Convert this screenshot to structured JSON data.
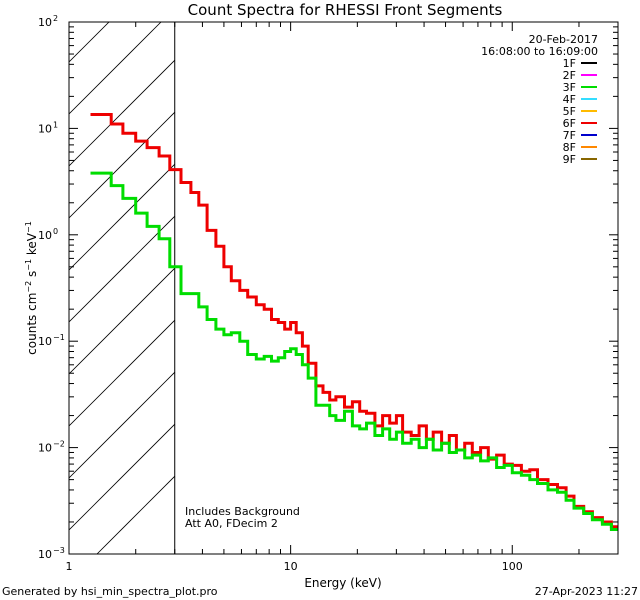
{
  "chart_data": {
    "type": "line",
    "title": "Count Spectra for RHESSI Front Segments",
    "xlabel": "Energy (keV)",
    "ylabel": {
      "base": "counts cm",
      "exp1": "−2",
      "mid1": " s",
      "exp2": "−1",
      "mid2": " keV",
      "exp3": "−1"
    },
    "xscale": "log",
    "yscale": "log",
    "xlim": [
      1,
      300
    ],
    "ylim": [
      0.001,
      100
    ],
    "x_ticks": [
      {
        "value": 1,
        "label": "1"
      },
      {
        "value": 10,
        "label": "10"
      },
      {
        "value": 100,
        "label": "100"
      }
    ],
    "y_ticks": [
      {
        "value": 0.001,
        "base": "10",
        "exp": "−3"
      },
      {
        "value": 0.01,
        "base": "10",
        "exp": "−2"
      },
      {
        "value": 0.1,
        "base": "10",
        "exp": "−1"
      },
      {
        "value": 1,
        "base": "10",
        "exp": "0"
      },
      {
        "value": 10,
        "base": "10",
        "exp": "1"
      },
      {
        "value": 100,
        "base": "10",
        "exp": "2"
      }
    ],
    "hatched_region_max_keV": 3,
    "legend": {
      "position": "top-right",
      "date": "20-Feb-2017",
      "time_range": "16:08:00 to 16:09:00",
      "entries": [
        {
          "label": "1F",
          "color": "#000000"
        },
        {
          "label": "2F",
          "color": "#ff00ff"
        },
        {
          "label": "3F",
          "color": "#00dd00"
        },
        {
          "label": "4F",
          "color": "#33ddff"
        },
        {
          "label": "5F",
          "color": "#ffbb00"
        },
        {
          "label": "6F",
          "color": "#ee0000"
        },
        {
          "label": "7F",
          "color": "#0000cc"
        },
        {
          "label": "8F",
          "color": "#ff8800"
        },
        {
          "label": "9F",
          "color": "#886600"
        }
      ]
    },
    "annotations": [
      "Includes Background",
      "Att A0, FDecim 2"
    ],
    "series": [
      {
        "name": "6F",
        "color": "#ee0000",
        "points": [
          [
            1.25,
            13.5
          ],
          [
            1.45,
            13.5
          ],
          [
            1.55,
            11.0
          ],
          [
            1.75,
            9.0
          ],
          [
            2.0,
            7.6
          ],
          [
            2.25,
            6.6
          ],
          [
            2.55,
            5.5
          ],
          [
            2.85,
            4.1
          ],
          [
            3.2,
            3.1
          ],
          [
            3.55,
            2.5
          ],
          [
            3.85,
            1.9
          ],
          [
            4.2,
            1.1
          ],
          [
            4.6,
            0.78
          ],
          [
            5.0,
            0.5
          ],
          [
            5.4,
            0.37
          ],
          [
            5.9,
            0.3
          ],
          [
            6.4,
            0.26
          ],
          [
            7.0,
            0.22
          ],
          [
            7.6,
            0.2
          ],
          [
            8.2,
            0.16
          ],
          [
            8.8,
            0.15
          ],
          [
            9.4,
            0.13
          ],
          [
            10.0,
            0.15
          ],
          [
            10.6,
            0.12
          ],
          [
            11.3,
            0.09
          ],
          [
            12.0,
            0.062
          ],
          [
            13.0,
            0.038
          ],
          [
            14.0,
            0.033
          ],
          [
            15.0,
            0.028
          ],
          [
            16.0,
            0.03
          ],
          [
            17.5,
            0.024
          ],
          [
            19.0,
            0.027
          ],
          [
            20.5,
            0.022
          ],
          [
            22.0,
            0.021
          ],
          [
            24.0,
            0.016
          ],
          [
            26.0,
            0.02
          ],
          [
            28.0,
            0.017
          ],
          [
            30.0,
            0.02
          ],
          [
            32.0,
            0.014
          ],
          [
            35.0,
            0.013
          ],
          [
            38.0,
            0.016
          ],
          [
            41.0,
            0.012
          ],
          [
            44.0,
            0.014
          ],
          [
            48.0,
            0.011
          ],
          [
            52.0,
            0.013
          ],
          [
            56.0,
            0.0095
          ],
          [
            61.0,
            0.011
          ],
          [
            66.0,
            0.009
          ],
          [
            72.0,
            0.01
          ],
          [
            78.0,
            0.0078
          ],
          [
            85.0,
            0.0085
          ],
          [
            92.0,
            0.007
          ],
          [
            100.0,
            0.0068
          ],
          [
            110.0,
            0.006
          ],
          [
            120.0,
            0.0062
          ],
          [
            130.0,
            0.005
          ],
          [
            145.0,
            0.0045
          ],
          [
            160.0,
            0.0042
          ],
          [
            175.0,
            0.0035
          ],
          [
            190.0,
            0.0028
          ],
          [
            210.0,
            0.0025
          ],
          [
            230.0,
            0.0022
          ],
          [
            255.0,
            0.002
          ],
          [
            280.0,
            0.0018
          ],
          [
            300.0,
            0.0018
          ]
        ]
      },
      {
        "name": "3F",
        "color": "#00dd00",
        "points": [
          [
            1.25,
            3.8
          ],
          [
            1.45,
            3.8
          ],
          [
            1.55,
            2.9
          ],
          [
            1.75,
            2.2
          ],
          [
            2.0,
            1.6
          ],
          [
            2.25,
            1.2
          ],
          [
            2.55,
            0.92
          ],
          [
            2.85,
            0.5
          ],
          [
            3.2,
            0.28
          ],
          [
            3.55,
            0.28
          ],
          [
            3.85,
            0.21
          ],
          [
            4.2,
            0.16
          ],
          [
            4.6,
            0.13
          ],
          [
            5.0,
            0.115
          ],
          [
            5.4,
            0.12
          ],
          [
            5.9,
            0.1
          ],
          [
            6.4,
            0.075
          ],
          [
            7.0,
            0.068
          ],
          [
            7.6,
            0.072
          ],
          [
            8.2,
            0.065
          ],
          [
            8.8,
            0.07
          ],
          [
            9.4,
            0.08
          ],
          [
            10.0,
            0.085
          ],
          [
            10.6,
            0.075
          ],
          [
            11.3,
            0.06
          ],
          [
            12.0,
            0.045
          ],
          [
            13.0,
            0.025
          ],
          [
            14.0,
            0.025
          ],
          [
            15.0,
            0.02
          ],
          [
            16.0,
            0.018
          ],
          [
            17.5,
            0.022
          ],
          [
            19.0,
            0.016
          ],
          [
            20.5,
            0.015
          ],
          [
            22.0,
            0.017
          ],
          [
            24.0,
            0.013
          ],
          [
            26.0,
            0.015
          ],
          [
            28.0,
            0.012
          ],
          [
            30.0,
            0.014
          ],
          [
            32.0,
            0.011
          ],
          [
            35.0,
            0.012
          ],
          [
            38.0,
            0.01
          ],
          [
            41.0,
            0.012
          ],
          [
            44.0,
            0.0095
          ],
          [
            48.0,
            0.011
          ],
          [
            52.0,
            0.009
          ],
          [
            56.0,
            0.0095
          ],
          [
            61.0,
            0.008
          ],
          [
            66.0,
            0.0085
          ],
          [
            72.0,
            0.0075
          ],
          [
            78.0,
            0.008
          ],
          [
            85.0,
            0.0065
          ],
          [
            92.0,
            0.0068
          ],
          [
            100.0,
            0.0058
          ],
          [
            110.0,
            0.0055
          ],
          [
            120.0,
            0.005
          ],
          [
            130.0,
            0.0046
          ],
          [
            145.0,
            0.004
          ],
          [
            160.0,
            0.0038
          ],
          [
            175.0,
            0.0032
          ],
          [
            190.0,
            0.0027
          ],
          [
            210.0,
            0.0024
          ],
          [
            230.0,
            0.0021
          ],
          [
            255.0,
            0.0019
          ],
          [
            280.0,
            0.0017
          ],
          [
            300.0,
            0.0017
          ]
        ]
      }
    ]
  },
  "footer": {
    "generated_by": "Generated by hsi_min_spectra_plot.pro",
    "timestamp": "27-Apr-2023 11:27"
  }
}
